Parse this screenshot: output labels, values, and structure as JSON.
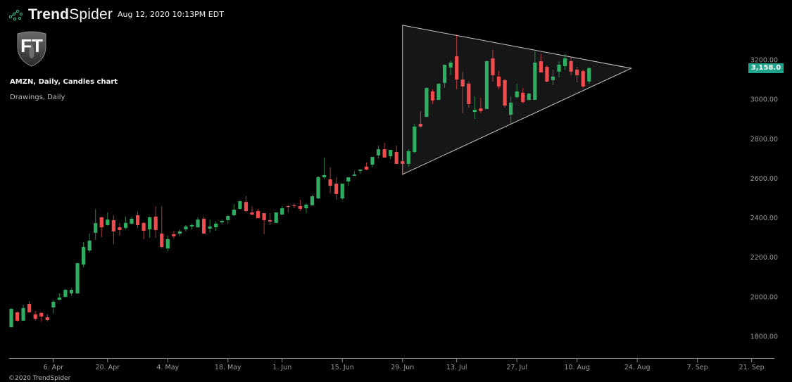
{
  "header": {
    "brand_bold": "Trend",
    "brand_light": "Spider",
    "timestamp": "Aug 12, 2020 10:13PM EDT",
    "logo_text": "FT"
  },
  "chart_info": {
    "title": "AMZN, Daily, Candles chart",
    "subtitle": "Drawings, Daily"
  },
  "footer": "©2020 TrendSpider",
  "colors": {
    "up": "#2fae63",
    "down": "#f04b4f",
    "price_tag": "#1fa38a",
    "triangle_fill": "#161616",
    "triangle_stroke": "#c8c8c8"
  },
  "chart_data": {
    "type": "candlestick",
    "ticker": "AMZN",
    "ylim": [
      1720,
      3380
    ],
    "yticks": [
      "1800.00",
      "2000.00",
      "2200.00",
      "2400.00",
      "2600.00",
      "2800.00",
      "3000.00",
      "3200.00"
    ],
    "ytick_values": [
      1800,
      2000,
      2200,
      2400,
      2600,
      2800,
      3000,
      3200
    ],
    "xticks": [
      {
        "label": "6. Apr",
        "date": "2020-04-06"
      },
      {
        "label": "20. Apr",
        "date": "2020-04-20"
      },
      {
        "label": "4. May",
        "date": "2020-05-04"
      },
      {
        "label": "18. May",
        "date": "2020-05-18"
      },
      {
        "label": "1. Jun",
        "date": "2020-06-01"
      },
      {
        "label": "15. Jun",
        "date": "2020-06-15"
      },
      {
        "label": "29. Jun",
        "date": "2020-06-29"
      },
      {
        "label": "13. Jul",
        "date": "2020-07-13"
      },
      {
        "label": "27. Jul",
        "date": "2020-07-27"
      },
      {
        "label": "10. Aug",
        "date": "2020-08-10"
      },
      {
        "label": "24. Aug",
        "date": "2020-08-24"
      },
      {
        "label": "7. Sep",
        "date": "2020-09-07"
      },
      {
        "label": "21. Sep",
        "date": "2020-09-21"
      }
    ],
    "last_price_label": "3,158.0",
    "last_price": 3158,
    "grid": false,
    "triangle": [
      {
        "date": "2020-06-29",
        "price": 3375
      },
      {
        "date": "2020-06-29",
        "price": 2620
      },
      {
        "date": "2020-08-21",
        "price": 3157
      }
    ],
    "candles_fields": [
      "date",
      "open",
      "high",
      "low",
      "close"
    ],
    "candles": [
      [
        "2020-03-26",
        1846,
        1943,
        1846,
        1939
      ],
      [
        "2020-03-27",
        1921,
        1925,
        1875,
        1879
      ],
      [
        "2020-03-30",
        1879,
        1960,
        1879,
        1943
      ],
      [
        "2020-03-31",
        1964,
        1978,
        1918,
        1921
      ],
      [
        "2020-04-01",
        1911,
        1928,
        1879,
        1889
      ],
      [
        "2020-04-02",
        1918,
        1921,
        1875,
        1900
      ],
      [
        "2020-04-03",
        1896,
        1911,
        1875,
        1882
      ],
      [
        "2020-04-06",
        1946,
        1982,
        1914,
        1975
      ],
      [
        "2020-04-07",
        1985,
        2017,
        1982,
        1996
      ],
      [
        "2020-04-08",
        1999,
        2040,
        1997,
        2035
      ],
      [
        "2020-04-09",
        2017,
        2042,
        2003,
        2035
      ],
      [
        "2020-04-13",
        2017,
        2172,
        2015,
        2170
      ],
      [
        "2020-04-14",
        2163,
        2277,
        2149,
        2252
      ],
      [
        "2020-04-15",
        2234,
        2320,
        2224,
        2284
      ],
      [
        "2020-04-16",
        2324,
        2444,
        2288,
        2373
      ],
      [
        "2020-04-17",
        2402,
        2405,
        2302,
        2352
      ],
      [
        "2020-04-20",
        2363,
        2427,
        2360,
        2391
      ],
      [
        "2020-04-21",
        2388,
        2413,
        2267,
        2331
      ],
      [
        "2020-04-22",
        2352,
        2374,
        2309,
        2338
      ],
      [
        "2020-04-23",
        2349,
        2406,
        2341,
        2374
      ],
      [
        "2020-04-24",
        2370,
        2406,
        2366,
        2395
      ],
      [
        "2020-04-27",
        2413,
        2431,
        2349,
        2363
      ],
      [
        "2020-04-28",
        2374,
        2377,
        2292,
        2334
      ],
      [
        "2020-04-29",
        2341,
        2406,
        2299,
        2402
      ],
      [
        "2020-04-30",
        2406,
        2459,
        2299,
        2338
      ],
      [
        "2020-05-01",
        2320,
        2459,
        2245,
        2252
      ],
      [
        "2020-05-04",
        2245,
        2309,
        2231,
        2292
      ],
      [
        "2020-05-05",
        2317,
        2334,
        2295,
        2306
      ],
      [
        "2020-05-06",
        2320,
        2341,
        2306,
        2331
      ],
      [
        "2020-05-07",
        2341,
        2363,
        2331,
        2356
      ],
      [
        "2020-05-08",
        2356,
        2370,
        2341,
        2363
      ],
      [
        "2020-05-11",
        2352,
        2402,
        2349,
        2391
      ],
      [
        "2020-05-12",
        2395,
        2406,
        2317,
        2320
      ],
      [
        "2020-05-13",
        2345,
        2391,
        2324,
        2356
      ],
      [
        "2020-05-14",
        2352,
        2381,
        2334,
        2370
      ],
      [
        "2020-05-15",
        2377,
        2391,
        2366,
        2384
      ],
      [
        "2020-05-18",
        2388,
        2416,
        2370,
        2409
      ],
      [
        "2020-05-19",
        2413,
        2470,
        2409,
        2441
      ],
      [
        "2020-05-20",
        2445,
        2488,
        2441,
        2484
      ],
      [
        "2020-05-21",
        2480,
        2509,
        2427,
        2434
      ],
      [
        "2020-05-22",
        2427,
        2456,
        2413,
        2416
      ],
      [
        "2020-05-26",
        2434,
        2445,
        2398,
        2398
      ],
      [
        "2020-05-27",
        2423,
        2423,
        2317,
        2388
      ],
      [
        "2020-05-28",
        2388,
        2423,
        2363,
        2381
      ],
      [
        "2020-05-29",
        2374,
        2427,
        2374,
        2427
      ],
      [
        "2020-06-01",
        2416,
        2459,
        2416,
        2448
      ],
      [
        "2020-06-02",
        2459,
        2463,
        2427,
        2456
      ],
      [
        "2020-06-03",
        2463,
        2473,
        2448,
        2459
      ],
      [
        "2020-06-04",
        2459,
        2491,
        2434,
        2445
      ],
      [
        "2020-06-05",
        2448,
        2473,
        2423,
        2466
      ],
      [
        "2020-06-08",
        2463,
        2516,
        2463,
        2509
      ],
      [
        "2020-06-09",
        2498,
        2612,
        2495,
        2605
      ],
      [
        "2020-06-10",
        2605,
        2705,
        2595,
        2616
      ],
      [
        "2020-06-11",
        2595,
        2655,
        2523,
        2562
      ],
      [
        "2020-06-12",
        2573,
        2605,
        2491,
        2520
      ],
      [
        "2020-06-15",
        2498,
        2573,
        2491,
        2573
      ],
      [
        "2020-06-16",
        2584,
        2605,
        2562,
        2605
      ],
      [
        "2020-06-17",
        2612,
        2637,
        2612,
        2619
      ],
      [
        "2020-06-18",
        2637,
        2644,
        2623,
        2644
      ],
      [
        "2020-06-19",
        2659,
        2680,
        2641,
        2644
      ],
      [
        "2020-06-22",
        2669,
        2708,
        2655,
        2708
      ],
      [
        "2020-06-23",
        2716,
        2765,
        2701,
        2747
      ],
      [
        "2020-06-24",
        2747,
        2780,
        2705,
        2705
      ],
      [
        "2020-06-25",
        2712,
        2744,
        2698,
        2744
      ],
      [
        "2020-06-26",
        2733,
        2765,
        2673,
        2673
      ],
      [
        "2020-06-29",
        2687,
        2694,
        2616,
        2673
      ],
      [
        "2020-06-30",
        2673,
        2747,
        2659,
        2737
      ],
      [
        "2020-07-01",
        2733,
        2876,
        2726,
        2862
      ],
      [
        "2020-07-02",
        2876,
        2940,
        2855,
        2862
      ],
      [
        "2020-07-06",
        2911,
        3058,
        2911,
        3058
      ],
      [
        "2020-07-07",
        3040,
        3051,
        2976,
        2994
      ],
      [
        "2020-07-08",
        2997,
        3079,
        2997,
        3079
      ],
      [
        "2020-07-09",
        3083,
        3175,
        3058,
        3175
      ],
      [
        "2020-07-10",
        3161,
        3196,
        3122,
        3186
      ],
      [
        "2020-07-13",
        3218,
        3328,
        3051,
        3100
      ],
      [
        "2020-07-14",
        3100,
        3140,
        2929,
        3065
      ],
      [
        "2020-07-15",
        3079,
        3090,
        2958,
        2976
      ],
      [
        "2020-07-16",
        2936,
        3015,
        2901,
        2947
      ],
      [
        "2020-07-17",
        2954,
        3008,
        2929,
        2940
      ],
      [
        "2020-07-20",
        2951,
        3196,
        2951,
        3193
      ],
      [
        "2020-07-21",
        3207,
        3250,
        3090,
        3122
      ],
      [
        "2020-07-22",
        3115,
        3143,
        3051,
        3065
      ],
      [
        "2020-07-23",
        3097,
        3104,
        2958,
        2968
      ],
      [
        "2020-07-24",
        2922,
        3015,
        2876,
        2983
      ],
      [
        "2020-07-27",
        3011,
        3079,
        3004,
        3040
      ],
      [
        "2020-07-28",
        3033,
        3058,
        2979,
        2986
      ],
      [
        "2020-07-29",
        2997,
        3033,
        2994,
        3029
      ],
      [
        "2020-07-30",
        2997,
        3243,
        2997,
        3186
      ],
      [
        "2020-07-31",
        3193,
        3229,
        3136,
        3136
      ],
      [
        "2020-08-03",
        3164,
        3172,
        3086,
        3090
      ],
      [
        "2020-08-04",
        3097,
        3150,
        3072,
        3115
      ],
      [
        "2020-08-05",
        3140,
        3193,
        3111,
        3175
      ],
      [
        "2020-08-06",
        3168,
        3229,
        3150,
        3207
      ],
      [
        "2020-08-07",
        3193,
        3214,
        3122,
        3140
      ],
      [
        "2020-08-10",
        3150,
        3164,
        3086,
        3122
      ],
      [
        "2020-08-11",
        3143,
        3150,
        3058,
        3065
      ],
      [
        "2020-08-12",
        3090,
        3162,
        3079,
        3158
      ]
    ]
  }
}
